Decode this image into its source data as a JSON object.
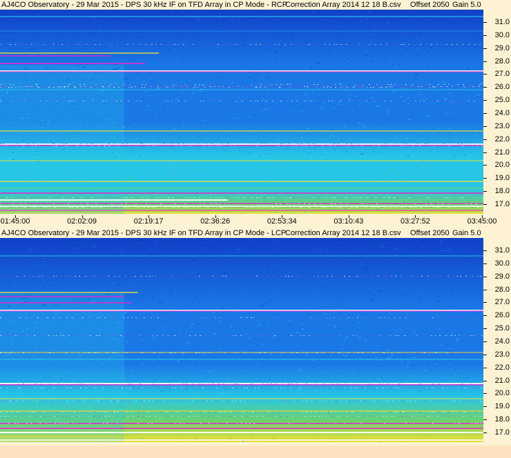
{
  "panels": [
    {
      "title_left": "AJ4CO Observatory - 29 Mar 2015 - DPS 30 kHz IF on TFD Array in CP Mode - RCP",
      "title_file": "Correction Array 2014 12 18 B.csv",
      "title_offset": "Offset 2050",
      "title_gain": "Gain 5.0"
    },
    {
      "title_left": "AJ4CO Observatory - 29 Mar 2015 - DPS 30 kHz IF on TFD Array in CP Mode - LCP",
      "title_file": "Correction Array 2014 12 18 B.csv",
      "title_offset": "Offset 2050",
      "title_gain": "Gain 5.0"
    }
  ],
  "freq_labels": [
    "31.0",
    "30.0",
    "29.0",
    "28.0",
    "27.0",
    "26.0",
    "25.0",
    "24.0",
    "23.0",
    "22.0",
    "21.0",
    "20.0",
    "19.0",
    "18.0",
    "17.0"
  ],
  "time_labels": [
    "01:45:00",
    "02:02:09",
    "02:19:17",
    "02:36:26",
    "02:53:34",
    "03:10:43",
    "03:27:52",
    "03:45:00"
  ],
  "colors": {
    "background": "#fdf3d4",
    "deep_blue": "#1040c8",
    "mid_blue": "#1a78e6",
    "cyan": "#27c6e6",
    "green": "#6fd36a",
    "yellow": "#e8e03a",
    "magenta": "#e02ad0",
    "white": "#ffffff"
  }
}
